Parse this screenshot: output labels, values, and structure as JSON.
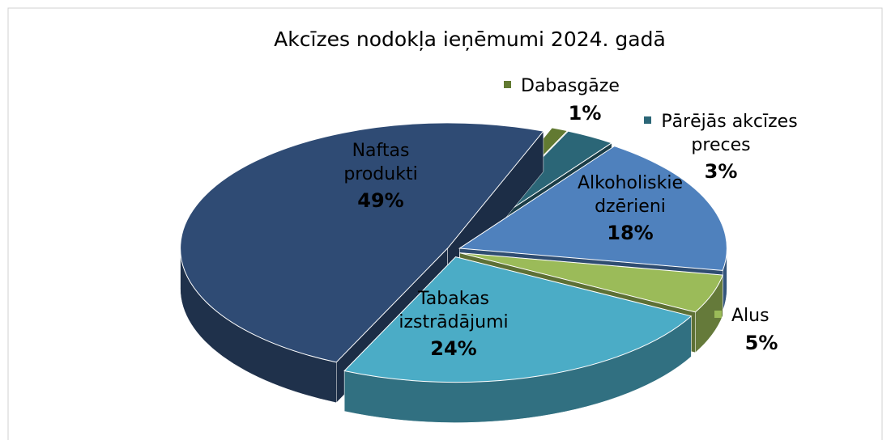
{
  "chart_data": {
    "type": "pie3d",
    "title": "Akcīzes nodokļa ieņēmumi 2024. gadā",
    "categories": [
      "Naftas produkti",
      "Dabasgāze",
      "Pārējās akcīzes preces",
      "Alkoholiskie dzērieni",
      "Alus",
      "Tabakas izstrādājumi"
    ],
    "values": [
      49,
      1,
      3,
      18,
      5,
      24
    ],
    "value_labels": [
      "49%",
      "1%",
      "3%",
      "18%",
      "5%",
      "24%"
    ],
    "colors": [
      "#2f4b74",
      "#627a32",
      "#2b6677",
      "#4f81bd",
      "#9bbb59",
      "#4bacc6"
    ]
  }
}
